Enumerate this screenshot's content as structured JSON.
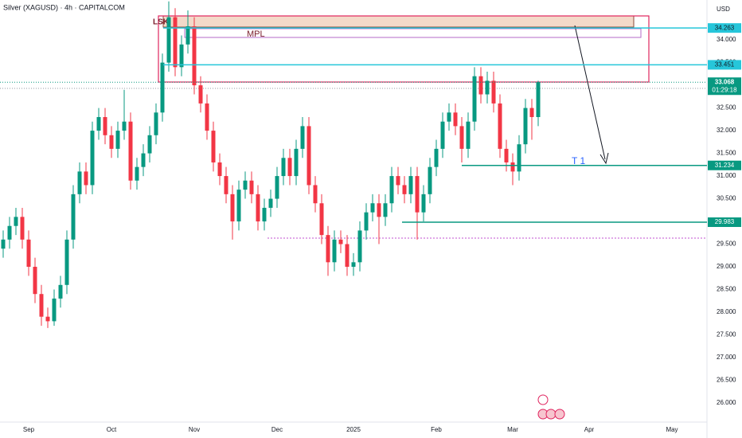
{
  "chart_data": {
    "type": "candlestick",
    "title": "Silver (XAGUSD) · 4h · CAPITALCOM",
    "currency": "USD",
    "categories": [
      null,
      null,
      null,
      null,
      "Sep",
      null,
      null,
      null,
      null,
      null,
      null,
      null,
      null,
      null,
      null,
      null,
      null,
      "Oct",
      null,
      null,
      null,
      null,
      null,
      null,
      null,
      null,
      null,
      null,
      null,
      null,
      "Nov",
      null,
      null,
      null,
      null,
      null,
      null,
      null,
      null,
      null,
      null,
      null,
      null,
      "Dec",
      null,
      null,
      null,
      null,
      null,
      null,
      null,
      null,
      null,
      null,
      null,
      "2025",
      null,
      null,
      null,
      null,
      null,
      null,
      null,
      null,
      null,
      null,
      null,
      null,
      "Feb",
      null,
      null,
      null,
      null,
      null,
      null,
      null,
      null,
      null,
      null,
      null,
      "Mar",
      null,
      null,
      null,
      null,
      null,
      null,
      null,
      null,
      null,
      null,
      null,
      "Apr",
      null,
      null,
      null,
      null,
      null,
      null,
      null,
      null,
      null,
      null,
      null,
      null,
      "May",
      null,
      null,
      null,
      null,
      null
    ],
    "open": [
      29.4,
      29.6,
      29.9,
      30.1,
      29.6,
      29.0,
      28.4,
      27.9,
      27.8,
      28.3,
      28.6,
      29.6,
      30.6,
      31.1,
      30.8,
      32.0,
      32.3,
      31.9,
      31.6,
      32.0,
      32.2,
      30.9,
      31.2,
      31.5,
      31.9,
      32.4,
      33.5,
      34.5,
      33.4,
      33.9,
      34.3,
      33.0,
      32.6,
      32.0,
      31.3,
      31.0,
      30.6,
      30.0,
      30.7,
      30.9,
      30.6,
      30.0,
      30.3,
      30.5,
      31.0,
      31.4,
      31.0,
      31.6,
      32.1,
      30.8,
      30.4,
      29.7,
      29.1,
      29.6,
      29.5,
      29.0,
      29.1,
      29.8,
      30.2,
      30.4,
      30.1,
      30.4,
      31.0,
      30.8,
      30.6,
      31.0,
      30.2,
      30.6,
      31.2,
      31.6,
      32.2,
      32.4,
      32.1,
      31.6,
      32.2,
      33.2,
      32.8,
      33.1,
      32.6,
      31.6,
      31.3,
      31.1,
      31.7,
      32.5,
      32.3,
      null,
      null,
      null,
      null,
      null,
      null,
      null,
      null,
      null,
      null,
      null,
      null,
      null,
      null,
      null,
      null,
      null,
      null,
      null,
      null,
      null,
      null,
      null,
      null,
      null,
      null
    ],
    "high": [
      29.8,
      30.1,
      30.3,
      30.3,
      29.8,
      29.2,
      28.6,
      28.1,
      28.5,
      28.8,
      29.8,
      30.8,
      31.3,
      31.3,
      32.2,
      32.5,
      32.5,
      32.1,
      32.2,
      32.9,
      32.4,
      31.4,
      31.7,
      32.1,
      32.6,
      33.7,
      34.85,
      34.7,
      34.1,
      34.65,
      34.5,
      33.2,
      32.8,
      32.2,
      31.5,
      31.2,
      30.8,
      30.9,
      31.1,
      31.1,
      30.8,
      30.5,
      30.7,
      31.2,
      31.6,
      31.6,
      31.8,
      32.3,
      32.3,
      31.0,
      30.6,
      29.9,
      29.8,
      29.8,
      29.7,
      29.3,
      30.0,
      30.4,
      30.6,
      30.6,
      30.6,
      31.2,
      31.2,
      31.0,
      31.2,
      31.2,
      30.8,
      31.4,
      31.8,
      32.4,
      32.6,
      32.6,
      32.3,
      32.4,
      33.4,
      33.4,
      33.3,
      33.3,
      32.8,
      31.8,
      31.5,
      31.9,
      32.7,
      32.7,
      33.1,
      null,
      null,
      null,
      null,
      null,
      null,
      null,
      null,
      null,
      null,
      null,
      null,
      null,
      null,
      null,
      null,
      null,
      null,
      null,
      null,
      null,
      null,
      null,
      null,
      null,
      null
    ],
    "low": [
      29.2,
      29.4,
      29.7,
      29.4,
      28.8,
      28.2,
      27.7,
      27.65,
      27.7,
      28.1,
      28.4,
      29.4,
      30.4,
      30.6,
      30.6,
      31.8,
      31.7,
      31.4,
      31.4,
      31.8,
      30.7,
      30.7,
      31.0,
      31.3,
      31.7,
      32.2,
      33.3,
      33.2,
      33.2,
      33.7,
      32.8,
      32.4,
      31.8,
      31.1,
      30.8,
      30.4,
      29.6,
      29.8,
      30.5,
      30.4,
      29.8,
      29.8,
      30.1,
      30.3,
      30.8,
      30.8,
      30.8,
      31.4,
      30.6,
      30.2,
      29.5,
      28.8,
      28.9,
      29.3,
      28.8,
      28.8,
      28.9,
      29.6,
      30.0,
      29.5,
      29.9,
      30.2,
      30.6,
      30.4,
      30.4,
      29.6,
      30.0,
      30.4,
      31.0,
      31.4,
      32.0,
      31.9,
      31.3,
      31.4,
      32.0,
      32.6,
      32.6,
      32.4,
      31.4,
      31.1,
      30.8,
      30.9,
      31.5,
      31.8,
      32.1,
      null,
      null,
      null,
      null,
      null,
      null,
      null,
      null,
      null,
      null,
      null,
      null,
      null,
      null,
      null,
      null,
      null,
      null,
      null,
      null,
      null,
      null,
      null,
      null,
      null,
      null
    ],
    "close": [
      29.6,
      29.9,
      30.1,
      29.6,
      29.0,
      28.4,
      27.9,
      27.8,
      28.3,
      28.6,
      29.6,
      30.6,
      31.1,
      30.8,
      32.0,
      32.3,
      31.9,
      31.6,
      32.0,
      32.2,
      30.9,
      31.2,
      31.5,
      31.9,
      32.4,
      33.5,
      34.5,
      33.4,
      33.9,
      34.3,
      33.0,
      32.6,
      32.0,
      31.3,
      31.0,
      30.6,
      30.0,
      30.7,
      30.9,
      30.6,
      30.0,
      30.3,
      30.5,
      31.0,
      31.4,
      31.0,
      31.6,
      32.1,
      30.8,
      30.4,
      29.7,
      29.1,
      29.6,
      29.5,
      29.0,
      29.1,
      29.8,
      30.2,
      30.4,
      30.1,
      30.4,
      31.0,
      30.8,
      30.6,
      31.0,
      30.2,
      30.6,
      31.2,
      31.6,
      32.2,
      32.4,
      32.1,
      31.6,
      32.2,
      33.2,
      32.8,
      33.1,
      32.6,
      31.6,
      31.3,
      31.1,
      31.7,
      32.5,
      32.3,
      33.068,
      null,
      null,
      null,
      null,
      null,
      null,
      null,
      null,
      null,
      null,
      null,
      null,
      null,
      null,
      null,
      null,
      null,
      null,
      null,
      null,
      null,
      null,
      null,
      null,
      null,
      null
    ],
    "up_color": "#089981",
    "down_color": "#f23645",
    "ylim": [
      25.49,
      34.88
    ],
    "yticks": [
      {
        "value": 26,
        "label": "26.000"
      },
      {
        "value": 26.5,
        "label": "26.500"
      },
      {
        "value": 27,
        "label": "27.000"
      },
      {
        "value": 27.5,
        "label": "27.500"
      },
      {
        "value": 28,
        "label": "28.000"
      },
      {
        "value": 28.5,
        "label": "28.500"
      },
      {
        "value": 29,
        "label": "29.000"
      },
      {
        "value": 29.5,
        "label": "29.500"
      },
      {
        "value": 30,
        "label": "30.000"
      },
      {
        "value": 30.5,
        "label": "30.500"
      },
      {
        "value": 31,
        "label": "31.000"
      },
      {
        "value": 31.5,
        "label": "31.500"
      },
      {
        "value": 32,
        "label": "32.000"
      },
      {
        "value": 32.5,
        "label": "32.500"
      },
      {
        "value": 33,
        "label": "33.000"
      },
      {
        "value": 33.5,
        "label": "33.500"
      },
      {
        "value": 34,
        "label": "34.000"
      }
    ],
    "grid": false,
    "price_lines": [
      {
        "value": 34.263,
        "color": "#26c6da"
      },
      {
        "value": 33.451,
        "color": "#26c6da"
      },
      {
        "value": 31.234,
        "color": "#089981"
      },
      {
        "value": 29.983,
        "color": "#089981"
      }
    ],
    "last_price": 33.068,
    "countdown": "01:29:18",
    "annotations": {
      "lsk": "LSK",
      "mpl": "MPL",
      "target": "T 1"
    }
  }
}
